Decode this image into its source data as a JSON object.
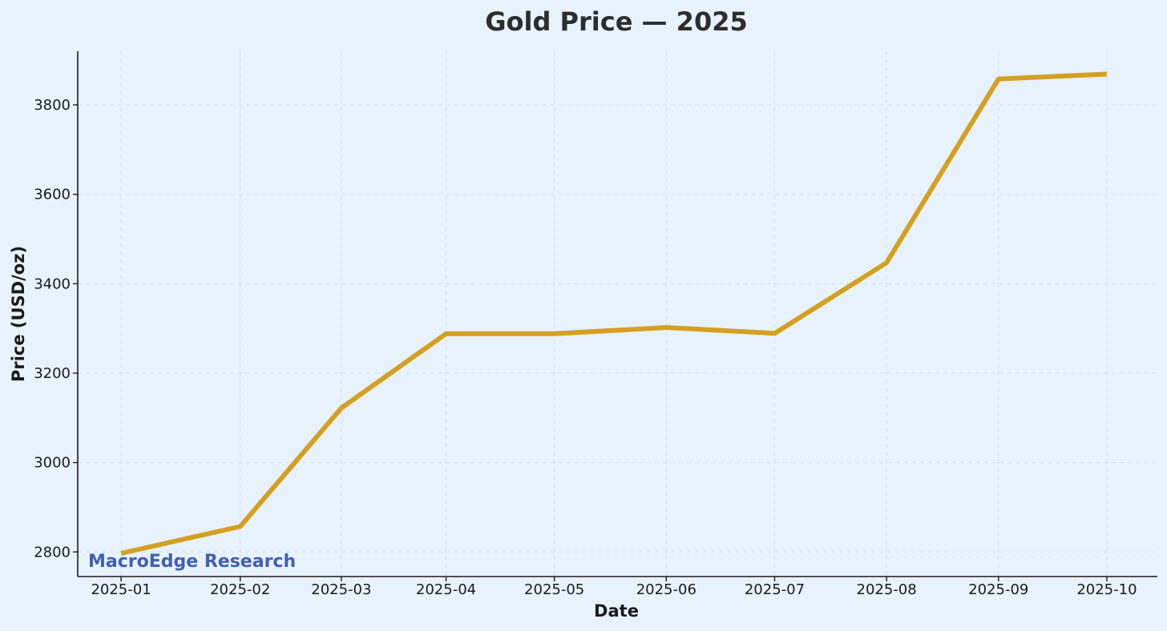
{
  "chart_data": {
    "type": "line",
    "title": "Gold Price — 2025",
    "xlabel": "Date",
    "ylabel": "Price (USD/oz)",
    "x_tick_labels": [
      "2025-01",
      "2025-02",
      "2025-03",
      "2025-04",
      "2025-05",
      "2025-06",
      "2025-07",
      "2025-08",
      "2025-09",
      "2025-10"
    ],
    "y_ticks": [
      2800,
      3000,
      3200,
      3400,
      3600,
      3800
    ],
    "ylim": [
      2745,
      3920
    ],
    "xlim": [
      "2024-12-20",
      "2025-10-15"
    ],
    "grid": true,
    "line_color": "#d4a020",
    "series": [
      {
        "x": [
          "2025-01-01",
          "2025-02-03",
          "2025-03-03",
          "2025-04-01",
          "2025-05-01",
          "2025-06-01",
          "2025-07-01",
          "2025-08-01",
          "2025-09-01",
          "2025-10-01"
        ],
        "y": [
          2797,
          2857,
          3122,
          3288,
          3288,
          3302,
          3289,
          3447,
          3858,
          3869
        ]
      }
    ]
  },
  "watermark": {
    "text": "MacroEdge Research",
    "color": "#4060b0"
  }
}
